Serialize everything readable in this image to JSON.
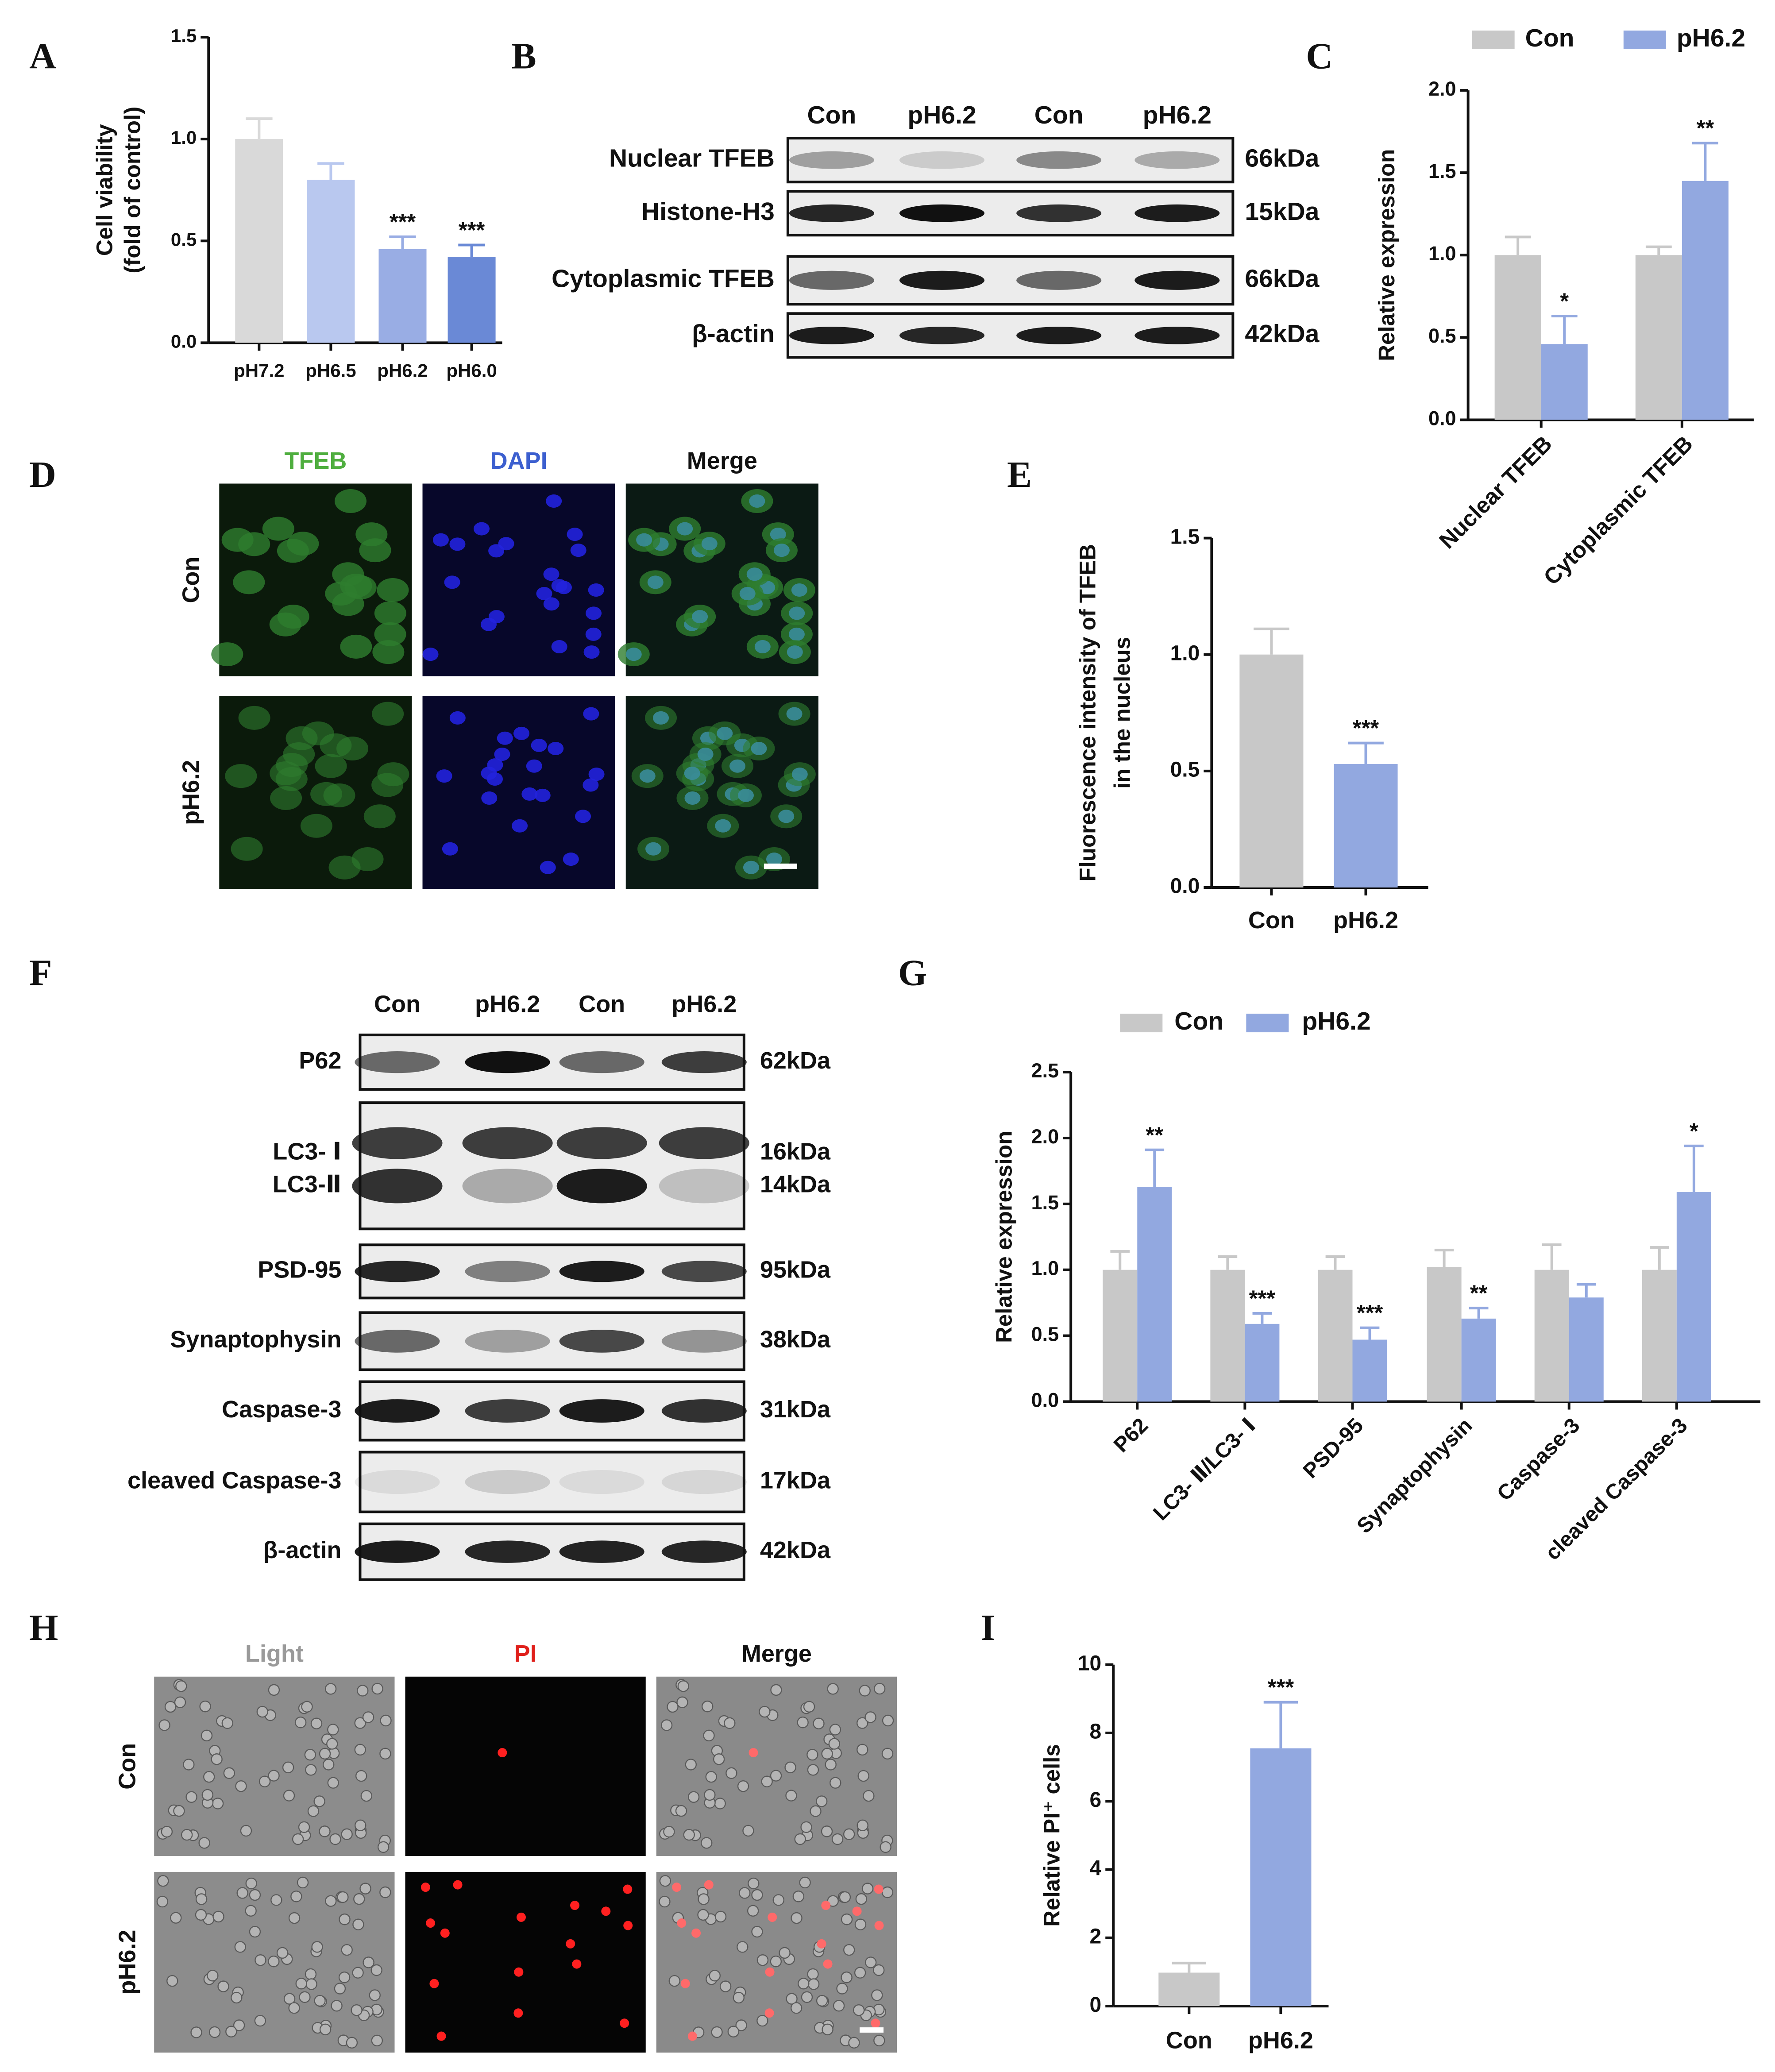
{
  "panel_labels": [
    "A",
    "B",
    "C",
    "D",
    "E",
    "F",
    "G",
    "H",
    "I"
  ],
  "chart_data": [
    {
      "type": "bar",
      "ylabel": [
        "Cell viability",
        "(fold of control)"
      ],
      "categories": [
        "pH7.2",
        "pH6.5",
        "pH6.2",
        "pH6.0"
      ],
      "values": [
        1.0,
        0.8,
        0.46,
        0.42
      ],
      "errors": [
        0.1,
        0.08,
        0.06,
        0.06
      ],
      "colors": [
        "#d9d9d9",
        "#b9c8ef",
        "#99ade4",
        "#6a89d6"
      ],
      "annotations": [
        null,
        null,
        "***",
        "***"
      ],
      "ylim": [
        0,
        1.5
      ],
      "yticks": [
        {
          "value": 0,
          "label": "0.0"
        },
        {
          "value": 0.5,
          "label": "0.5"
        },
        {
          "value": 1,
          "label": "1.0"
        },
        {
          "value": 1.5,
          "label": "1.5"
        }
      ]
    },
    {
      "type": "bar",
      "ylabel": [
        "Relative expression"
      ],
      "categories": [
        "Nuclear TFEB",
        "Cytoplasmic TFEB"
      ],
      "series": [
        {
          "name": "Con",
          "color": "#c8c8c8",
          "values": [
            1.0,
            1.0
          ],
          "errors": [
            0.11,
            0.05
          ],
          "annotations": [
            null,
            null
          ]
        },
        {
          "name": "pH6.2",
          "color": "#92a8e0",
          "values": [
            0.46,
            1.45
          ],
          "errors": [
            0.17,
            0.23
          ],
          "annotations": [
            "*",
            "**"
          ]
        }
      ],
      "ylim": [
        0,
        2
      ],
      "yticks": [
        {
          "value": 0,
          "label": "0.0"
        },
        {
          "value": 0.5,
          "label": "0.5"
        },
        {
          "value": 1,
          "label": "1.0"
        },
        {
          "value": 1.5,
          "label": "1.5"
        },
        {
          "value": 2,
          "label": "2.0"
        }
      ],
      "legend": "top"
    },
    {
      "type": "bar",
      "ylabel": [
        "Fluorescence intensity of TFEB",
        "in the nucleus"
      ],
      "categories": [
        "Con",
        "pH6.2"
      ],
      "values": [
        1.0,
        0.53
      ],
      "errors": [
        0.11,
        0.09
      ],
      "colors": [
        "#c8c8c8",
        "#92a8e0"
      ],
      "annotations": [
        null,
        "***"
      ],
      "ylim": [
        0,
        1.5
      ],
      "yticks": [
        {
          "value": 0,
          "label": "0.0"
        },
        {
          "value": 0.5,
          "label": "0.5"
        },
        {
          "value": 1,
          "label": "1.0"
        },
        {
          "value": 1.5,
          "label": "1.5"
        }
      ]
    },
    {
      "type": "bar",
      "ylabel": [
        "Relative expression"
      ],
      "categories": [
        "P62",
        "LC3- Ⅱ/LC3- Ⅰ",
        "PSD-95",
        "Synaptophysin",
        "Caspase-3",
        "cleaved Caspase-3"
      ],
      "series": [
        {
          "name": "Con",
          "color": "#c8c8c8",
          "values": [
            1.0,
            1.0,
            1.0,
            1.02,
            1.0,
            1.0
          ],
          "errors": [
            0.14,
            0.1,
            0.1,
            0.13,
            0.19,
            0.17
          ],
          "annotations": [
            null,
            null,
            null,
            null,
            null,
            null
          ]
        },
        {
          "name": "pH6.2",
          "color": "#92a8e0",
          "values": [
            1.63,
            0.59,
            0.47,
            0.63,
            0.79,
            1.59
          ],
          "errors": [
            0.28,
            0.08,
            0.09,
            0.08,
            0.1,
            0.35
          ],
          "annotations": [
            "**",
            "***",
            "***",
            "**",
            null,
            "*"
          ]
        }
      ],
      "ylim": [
        0,
        2.5
      ],
      "yticks": [
        {
          "value": 0,
          "label": "0.0"
        },
        {
          "value": 0.5,
          "label": "0.5"
        },
        {
          "value": 1,
          "label": "1.0"
        },
        {
          "value": 1.5,
          "label": "1.5"
        },
        {
          "value": 2,
          "label": "2.0"
        },
        {
          "value": 2.5,
          "label": "2.5"
        }
      ],
      "legend": "top"
    },
    {
      "type": "bar",
      "ylabel": [
        "Relative PI⁺ cells"
      ],
      "categories": [
        "Con",
        "pH6.2"
      ],
      "values": [
        0.98,
        7.55
      ],
      "errors": [
        0.28,
        1.35
      ],
      "colors": [
        "#c8c8c8",
        "#92a8e0"
      ],
      "annotations": [
        null,
        "***"
      ],
      "ylim": [
        0,
        10
      ],
      "yticks": [
        0,
        2,
        4,
        6,
        8,
        10
      ]
    }
  ],
  "blots": [
    {
      "columns": [
        "Con",
        "pH6.2",
        "Con",
        "pH6.2"
      ],
      "rows": [
        {
          "labels": [
            "Nuclear TFEB"
          ],
          "sizes": [
            "66kDa"
          ]
        },
        {
          "labels": [
            "Histone-H3"
          ],
          "sizes": [
            "15kDa"
          ]
        },
        {
          "labels": [
            "Cytoplasmic TFEB"
          ],
          "sizes": [
            "66kDa"
          ]
        },
        {
          "labels": [
            "β-actin"
          ],
          "sizes": [
            "42kDa"
          ]
        }
      ]
    },
    {
      "columns": [
        "Con",
        "pH6.2",
        "Con",
        "pH6.2"
      ],
      "rows": [
        {
          "labels": [
            "P62"
          ],
          "sizes": [
            "62kDa"
          ]
        },
        {
          "labels": [
            "LC3- Ⅰ",
            "LC3-Ⅱ"
          ],
          "sizes": [
            "16kDa",
            "14kDa"
          ]
        },
        {
          "labels": [
            "PSD-95"
          ],
          "sizes": [
            "95kDa"
          ]
        },
        {
          "labels": [
            "Synaptophysin"
          ],
          "sizes": [
            "38kDa"
          ]
        },
        {
          "labels": [
            "Caspase-3"
          ],
          "sizes": [
            "31kDa"
          ]
        },
        {
          "labels": [
            "cleaved Caspase-3"
          ],
          "sizes": [
            "17kDa"
          ]
        },
        {
          "labels": [
            "β-actin"
          ],
          "sizes": [
            "42kDa"
          ]
        }
      ]
    }
  ],
  "images": [
    {
      "columns": [
        "TFEB",
        "DAPI",
        "Merge"
      ],
      "column_colors": [
        "#4fae3f",
        "#3c5fcf",
        "#111111"
      ],
      "rows": [
        "Con",
        "pH6.2"
      ]
    },
    {
      "columns": [
        "Light",
        "PI",
        "Merge"
      ],
      "column_colors": [
        "#9a9a9a",
        "#e0201b",
        "#111111"
      ],
      "rows": [
        "Con",
        "pH6.2"
      ]
    }
  ]
}
